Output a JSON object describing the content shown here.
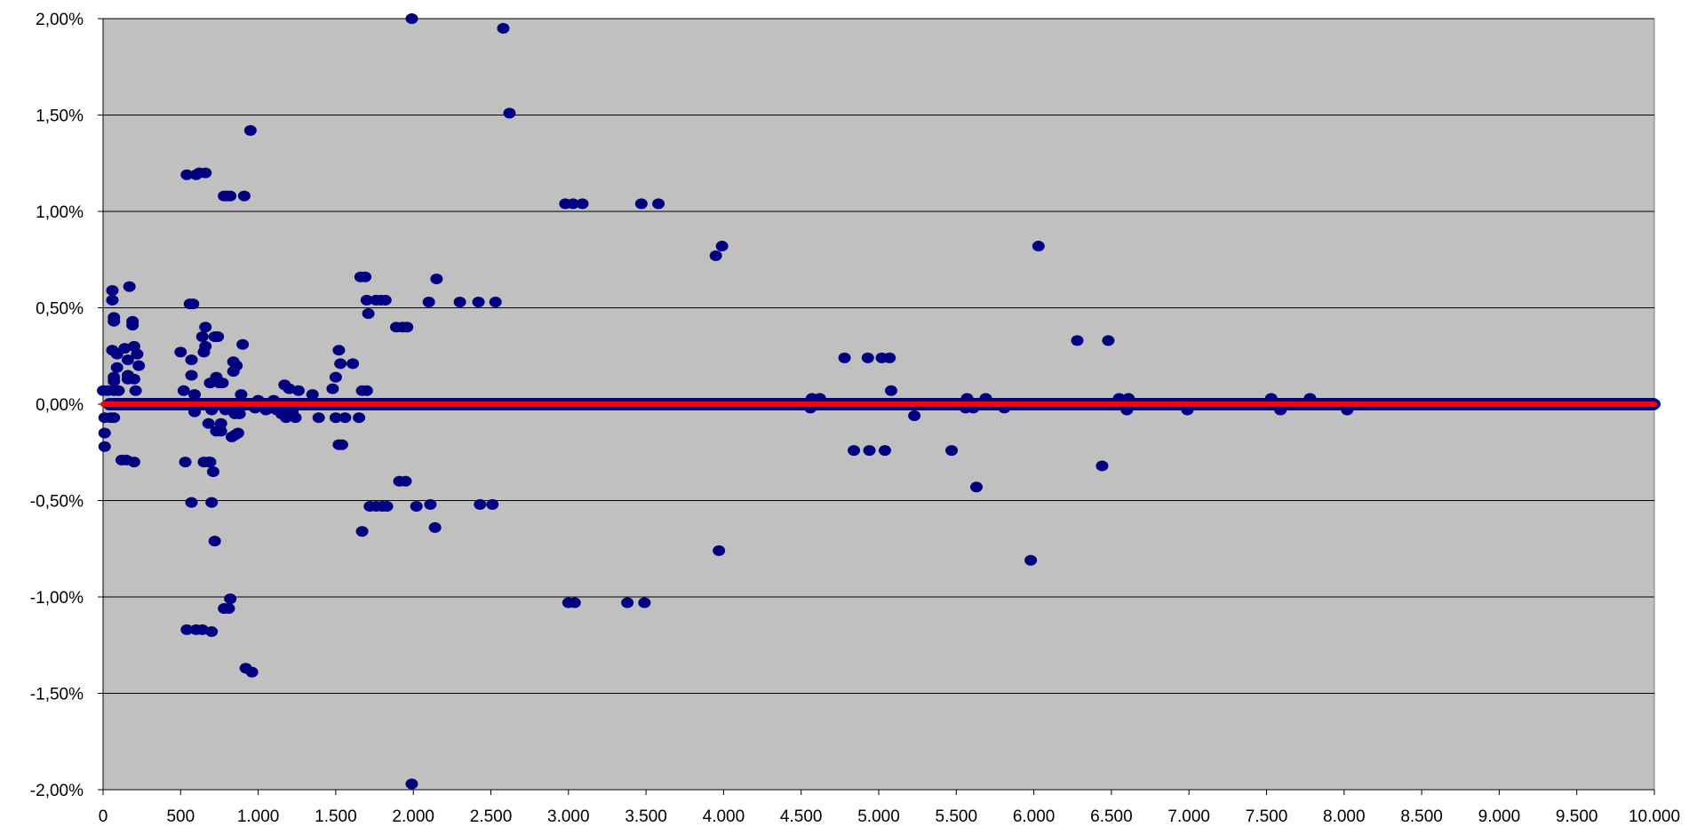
{
  "chart_data": {
    "type": "scatter",
    "title": "",
    "xlabel": "",
    "ylabel": "",
    "xlim": [
      0,
      10000
    ],
    "ylim": [
      -2.0,
      2.0
    ],
    "x_ticks": [
      0,
      500,
      1000,
      1500,
      2000,
      2500,
      3000,
      3500,
      4000,
      4500,
      5000,
      5500,
      6000,
      6500,
      7000,
      7500,
      8000,
      8500,
      9000,
      9500,
      10000
    ],
    "x_tick_labels": [
      "0",
      "500",
      "1.000",
      "1.500",
      "2.000",
      "2.500",
      "3.000",
      "3.500",
      "4.000",
      "4.500",
      "5.000",
      "5.500",
      "6.000",
      "6.500",
      "7.000",
      "7.500",
      "8.000",
      "8.500",
      "9.000",
      "9.500",
      "10.000"
    ],
    "y_ticks": [
      2.0,
      1.5,
      1.0,
      0.5,
      0.0,
      -0.5,
      -1.0,
      -1.5,
      -2.0
    ],
    "y_tick_labels": [
      "2,00%",
      "1,50%",
      "1,00%",
      "0,50%",
      "0,00%",
      "-0,50%",
      "-1,00%",
      "-1,50%",
      "-2,00%"
    ],
    "grid": "horizontal",
    "legend": "none",
    "colors": {
      "plot_background": "#c0c0c0",
      "gridline": "#000000",
      "points": "#000080",
      "line": "#ff0000"
    },
    "series": [
      {
        "type": "scatter",
        "points": [
          [
            0,
            0.07
          ],
          [
            10,
            -0.07
          ],
          [
            10,
            -0.15
          ],
          [
            10,
            -0.22
          ],
          [
            30,
            0.07
          ],
          [
            50,
            -0.07
          ],
          [
            60,
            0.28
          ],
          [
            60,
            0.59
          ],
          [
            60,
            0.54
          ],
          [
            70,
            0.45
          ],
          [
            70,
            0.43
          ],
          [
            70,
            0.14
          ],
          [
            70,
            0.12
          ],
          [
            70,
            0.07
          ],
          [
            70,
            -0.07
          ],
          [
            90,
            0.26
          ],
          [
            90,
            0.19
          ],
          [
            100,
            0.07
          ],
          [
            120,
            -0.29
          ],
          [
            140,
            0.29
          ],
          [
            150,
            -0.29
          ],
          [
            160,
            0.23
          ],
          [
            160,
            0.15
          ],
          [
            160,
            0.13
          ],
          [
            170,
            0.61
          ],
          [
            190,
            0.43
          ],
          [
            190,
            0.41
          ],
          [
            200,
            0.3
          ],
          [
            200,
            0.13
          ],
          [
            200,
            -0.3
          ],
          [
            210,
            0.07
          ],
          [
            220,
            0.26
          ],
          [
            230,
            0.2
          ],
          [
            500,
            0.27
          ],
          [
            520,
            0.07
          ],
          [
            530,
            -0.3
          ],
          [
            540,
            1.19
          ],
          [
            540,
            -1.17
          ],
          [
            560,
            0.52
          ],
          [
            570,
            0.23
          ],
          [
            570,
            0.15
          ],
          [
            570,
            -0.51
          ],
          [
            580,
            0.52
          ],
          [
            590,
            0.05
          ],
          [
            590,
            -0.04
          ],
          [
            600,
            1.19
          ],
          [
            600,
            -1.17
          ],
          [
            620,
            1.2
          ],
          [
            640,
            -1.17
          ],
          [
            640,
            0.35
          ],
          [
            650,
            0.27
          ],
          [
            650,
            -0.3
          ],
          [
            660,
            0.4
          ],
          [
            660,
            1.2
          ],
          [
            660,
            0.3
          ],
          [
            680,
            -0.3
          ],
          [
            680,
            -0.1
          ],
          [
            690,
            0.11
          ],
          [
            690,
            -0.3
          ],
          [
            700,
            -1.18
          ],
          [
            700,
            -0.03
          ],
          [
            700,
            -0.51
          ],
          [
            710,
            -0.35
          ],
          [
            720,
            -0.71
          ],
          [
            720,
            0.35
          ],
          [
            730,
            -0.14
          ],
          [
            730,
            0.14
          ],
          [
            740,
            0.35
          ],
          [
            750,
            0.11
          ],
          [
            760,
            -0.1
          ],
          [
            760,
            -0.14
          ],
          [
            770,
            0.11
          ],
          [
            780,
            1.08
          ],
          [
            780,
            -1.06
          ],
          [
            790,
            -0.03
          ],
          [
            800,
            1.08
          ],
          [
            810,
            -1.06
          ],
          [
            820,
            -1.01
          ],
          [
            820,
            1.08
          ],
          [
            830,
            -0.17
          ],
          [
            840,
            0.17
          ],
          [
            840,
            0.22
          ],
          [
            850,
            -0.05
          ],
          [
            850,
            -0.16
          ],
          [
            860,
            0.2
          ],
          [
            870,
            -0.15
          ],
          [
            880,
            -0.05
          ],
          [
            890,
            0.05
          ],
          [
            900,
            0.31
          ],
          [
            910,
            1.08
          ],
          [
            920,
            -1.37
          ],
          [
            950,
            1.42
          ],
          [
            960,
            -1.39
          ],
          [
            980,
            -0.02
          ],
          [
            1000,
            0.02
          ],
          [
            1050,
            -0.03
          ],
          [
            1080,
            -0.02
          ],
          [
            1100,
            0.02
          ],
          [
            1120,
            -0.03
          ],
          [
            1150,
            -0.05
          ],
          [
            1170,
            0.1
          ],
          [
            1180,
            -0.07
          ],
          [
            1200,
            0.08
          ],
          [
            1220,
            -0.04
          ],
          [
            1240,
            -0.07
          ],
          [
            1260,
            0.07
          ],
          [
            1350,
            0.05
          ],
          [
            1390,
            -0.07
          ],
          [
            1480,
            0.08
          ],
          [
            1500,
            -0.07
          ],
          [
            1500,
            0.14
          ],
          [
            1520,
            0.28
          ],
          [
            1520,
            -0.21
          ],
          [
            1530,
            0.21
          ],
          [
            1540,
            -0.21
          ],
          [
            1560,
            -0.07
          ],
          [
            1610,
            0.21
          ],
          [
            1650,
            -0.07
          ],
          [
            1660,
            0.66
          ],
          [
            1670,
            0.07
          ],
          [
            1670,
            -0.66
          ],
          [
            1690,
            0.66
          ],
          [
            1700,
            0.07
          ],
          [
            1700,
            0.54
          ],
          [
            1710,
            0.47
          ],
          [
            1720,
            -0.53
          ],
          [
            1760,
            0.54
          ],
          [
            1760,
            -0.53
          ],
          [
            1790,
            0.54
          ],
          [
            1800,
            -0.53
          ],
          [
            1820,
            0.54
          ],
          [
            1830,
            -0.53
          ],
          [
            1890,
            0.4
          ],
          [
            1910,
            -0.4
          ],
          [
            1930,
            0.4
          ],
          [
            1950,
            -0.4
          ],
          [
            1960,
            0.4
          ],
          [
            1990,
            2.0
          ],
          [
            1990,
            -1.97
          ],
          [
            2020,
            -0.53
          ],
          [
            2100,
            0.53
          ],
          [
            2110,
            -0.52
          ],
          [
            2140,
            -0.64
          ],
          [
            2150,
            0.65
          ],
          [
            2300,
            0.53
          ],
          [
            2420,
            0.53
          ],
          [
            2430,
            -0.52
          ],
          [
            2510,
            -0.52
          ],
          [
            2530,
            0.53
          ],
          [
            2580,
            1.95
          ],
          [
            2620,
            1.51
          ],
          [
            2980,
            1.04
          ],
          [
            3000,
            -1.03
          ],
          [
            3030,
            1.04
          ],
          [
            3040,
            -1.03
          ],
          [
            3090,
            1.04
          ],
          [
            3380,
            -1.03
          ],
          [
            3470,
            1.04
          ],
          [
            3490,
            -1.03
          ],
          [
            3580,
            1.04
          ],
          [
            3950,
            0.77
          ],
          [
            3970,
            -0.76
          ],
          [
            3990,
            0.82
          ],
          [
            4560,
            -0.02
          ],
          [
            4570,
            0.03
          ],
          [
            4620,
            0.03
          ],
          [
            4780,
            0.24
          ],
          [
            4840,
            -0.24
          ],
          [
            4930,
            0.24
          ],
          [
            4940,
            -0.24
          ],
          [
            5020,
            0.24
          ],
          [
            5040,
            -0.24
          ],
          [
            5070,
            0.24
          ],
          [
            5080,
            0.07
          ],
          [
            5230,
            -0.06
          ],
          [
            5470,
            -0.24
          ],
          [
            5560,
            -0.02
          ],
          [
            5570,
            0.03
          ],
          [
            5610,
            -0.02
          ],
          [
            5630,
            -0.43
          ],
          [
            5690,
            0.03
          ],
          [
            5810,
            -0.02
          ],
          [
            5980,
            -0.81
          ],
          [
            6030,
            0.82
          ],
          [
            6280,
            0.33
          ],
          [
            6440,
            -0.32
          ],
          [
            6480,
            0.33
          ],
          [
            6550,
            0.03
          ],
          [
            6600,
            -0.03
          ],
          [
            6610,
            0.03
          ],
          [
            6990,
            -0.03
          ],
          [
            7530,
            0.03
          ],
          [
            7590,
            -0.03
          ],
          [
            7780,
            0.03
          ],
          [
            8020,
            -0.03
          ],
          [
            10000,
            0.0
          ]
        ]
      },
      {
        "type": "line",
        "x": [
          0,
          10000
        ],
        "values": [
          0.0,
          0.0
        ]
      }
    ]
  }
}
